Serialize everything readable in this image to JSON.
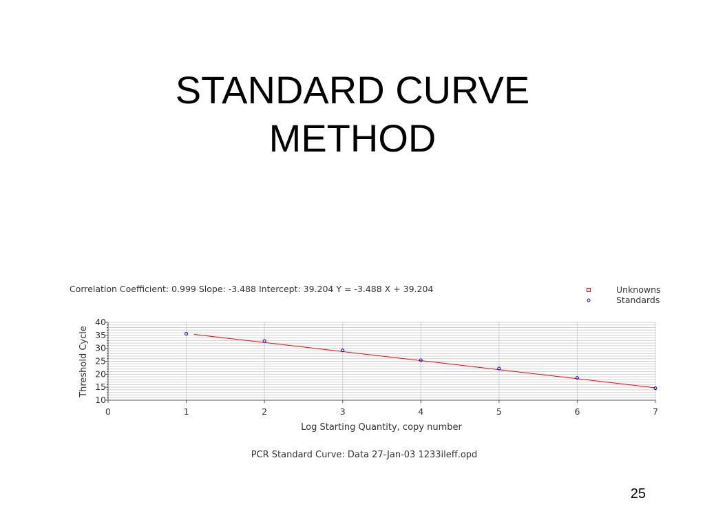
{
  "slide": {
    "title_line1": "STANDARD CURVE",
    "title_line2": "METHOD",
    "page_number": "25"
  },
  "chart_data": {
    "type": "scatter",
    "stats_text": "Correlation Coefficient: 0.999   Slope: -3.488   Intercept: 39.204   Y = -3.488 X + 39.204",
    "title": "PCR Standard Curve: Data 27-Jan-03 1233ileff.opd",
    "xlabel": "Log Starting Quantity, copy number",
    "ylabel": "Threshold Cycle",
    "xlim": [
      0,
      7
    ],
    "ylim": [
      10,
      40
    ],
    "x_ticks": [
      0,
      1,
      2,
      3,
      4,
      5,
      6,
      7
    ],
    "y_ticks": [
      10,
      15,
      20,
      25,
      30,
      35,
      40
    ],
    "grid": true,
    "legend_position": "top-right",
    "legend": [
      "Unknowns",
      "Standards"
    ],
    "regression": {
      "slope": -3.488,
      "intercept": 39.204,
      "x_range": [
        1.1,
        7
      ],
      "color": "#ff0000"
    },
    "series": [
      {
        "name": "Unknowns",
        "marker": "square",
        "color": "#ff0000",
        "points": []
      },
      {
        "name": "Standards",
        "marker": "circle",
        "color": "#0000ff",
        "points": [
          {
            "x": 1,
            "y": 35.6
          },
          {
            "x": 2,
            "y": 32.8
          },
          {
            "x": 3,
            "y": 29.2
          },
          {
            "x": 4,
            "y": 25.4
          },
          {
            "x": 5,
            "y": 22.2
          },
          {
            "x": 6,
            "y": 18.6
          },
          {
            "x": 7,
            "y": 14.6
          }
        ]
      }
    ]
  }
}
